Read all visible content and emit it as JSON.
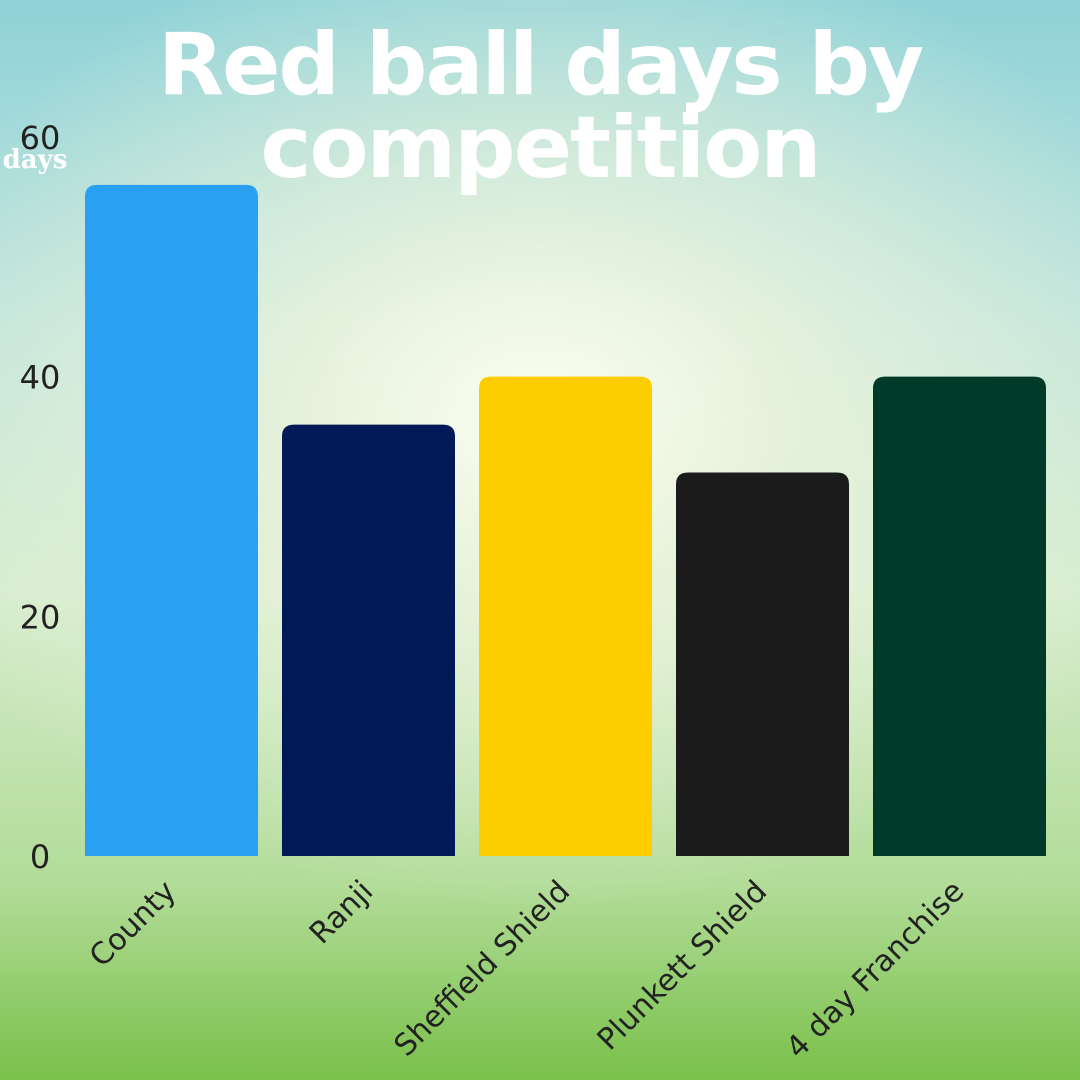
{
  "chart_data": {
    "type": "bar",
    "title": "Red ball days by competition",
    "title_lines": [
      "Red ball days by",
      "competition"
    ],
    "ylabel": "days",
    "xlabel": "",
    "categories": [
      "County",
      "Ranji",
      "Sheffield Shield",
      "Plunkett Shield",
      "4 day Franchise"
    ],
    "values": [
      56,
      36,
      40,
      32,
      40
    ],
    "colors": [
      "#2aa0f2",
      "#021957",
      "#fecd00",
      "#1b1b1b",
      "#003a29"
    ],
    "ylim": [
      0,
      60
    ],
    "yticks": [
      0,
      20,
      40,
      60
    ],
    "grid": false,
    "legend": "none"
  }
}
